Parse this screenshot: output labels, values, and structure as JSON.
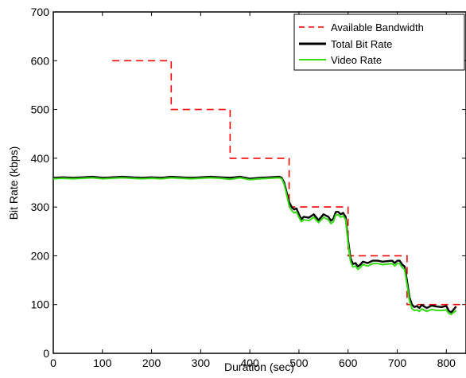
{
  "chart_data": {
    "type": "line",
    "title": "",
    "xlabel": "Duration (sec)",
    "ylabel": "Bit Rate (kbps)",
    "xlim": [
      0,
      840
    ],
    "ylim": [
      0,
      700
    ],
    "xticks": [
      0,
      100,
      200,
      300,
      400,
      500,
      600,
      700,
      800
    ],
    "yticks": [
      0,
      100,
      200,
      300,
      400,
      500,
      600,
      700
    ],
    "grid": false,
    "legend_position": "top-right",
    "series": [
      {
        "name": "Available Bandwidth",
        "color": "#ff0000",
        "style": "dashed",
        "x": [
          120,
          240,
          240,
          360,
          360,
          480,
          480,
          600,
          600,
          720,
          720,
          840
        ],
        "y": [
          600,
          600,
          500,
          500,
          400,
          400,
          300,
          300,
          200,
          200,
          100,
          100
        ]
      },
      {
        "name": "Total Bit Rate",
        "color": "#000000",
        "style": "solid",
        "x": [
          0,
          20,
          40,
          60,
          80,
          100,
          120,
          140,
          160,
          180,
          200,
          220,
          240,
          260,
          280,
          300,
          320,
          340,
          360,
          380,
          400,
          420,
          440,
          460,
          465,
          470,
          475,
          480,
          485,
          490,
          495,
          500,
          505,
          510,
          520,
          530,
          540,
          550,
          560,
          565,
          570,
          575,
          580,
          585,
          590,
          595,
          600,
          605,
          610,
          615,
          620,
          625,
          630,
          640,
          650,
          660,
          670,
          680,
          690,
          695,
          700,
          705,
          710,
          715,
          720,
          725,
          730,
          735,
          740,
          745,
          750,
          760,
          770,
          780,
          790,
          800,
          805,
          810,
          815,
          820
        ],
        "y": [
          360,
          361,
          360,
          361,
          362,
          360,
          361,
          362,
          361,
          360,
          361,
          360,
          362,
          361,
          360,
          361,
          362,
          361,
          360,
          362,
          358,
          360,
          361,
          362,
          360,
          350,
          330,
          310,
          300,
          295,
          297,
          285,
          275,
          280,
          278,
          285,
          273,
          285,
          280,
          272,
          276,
          290,
          290,
          285,
          288,
          280,
          232,
          195,
          183,
          185,
          178,
          182,
          188,
          185,
          190,
          190,
          188,
          189,
          190,
          185,
          190,
          190,
          182,
          178,
          148,
          115,
          100,
          95,
          97,
          93,
          99,
          93,
          98,
          96,
          95,
          97,
          87,
          84,
          90,
          96
        ]
      },
      {
        "name": "Video Rate",
        "color": "#33dd11",
        "style": "solid",
        "x": [
          0,
          20,
          40,
          60,
          80,
          100,
          120,
          140,
          160,
          180,
          200,
          220,
          240,
          260,
          280,
          300,
          320,
          340,
          360,
          380,
          400,
          420,
          440,
          460,
          465,
          470,
          475,
          480,
          485,
          490,
          495,
          500,
          505,
          510,
          520,
          530,
          540,
          550,
          560,
          565,
          570,
          575,
          580,
          585,
          590,
          595,
          600,
          605,
          610,
          615,
          620,
          625,
          630,
          640,
          650,
          660,
          670,
          680,
          690,
          695,
          700,
          705,
          710,
          715,
          720,
          725,
          730,
          735,
          740,
          745,
          750,
          760,
          770,
          780,
          790,
          800,
          805,
          810,
          815,
          820
        ],
        "y": [
          358,
          359,
          358,
          359,
          360,
          358,
          359,
          360,
          359,
          358,
          359,
          358,
          360,
          359,
          358,
          359,
          360,
          359,
          357,
          360,
          356,
          358,
          359,
          360,
          358,
          346,
          325,
          303,
          293,
          288,
          290,
          279,
          270,
          274,
          272,
          279,
          268,
          279,
          274,
          266,
          270,
          284,
          284,
          279,
          282,
          274,
          226,
          188,
          177,
          179,
          172,
          176,
          182,
          179,
          184,
          184,
          182,
          183,
          184,
          179,
          184,
          184,
          176,
          172,
          140,
          108,
          92,
          88,
          89,
          86,
          91,
          86,
          90,
          88,
          88,
          89,
          82,
          80,
          84,
          88
        ]
      }
    ]
  }
}
